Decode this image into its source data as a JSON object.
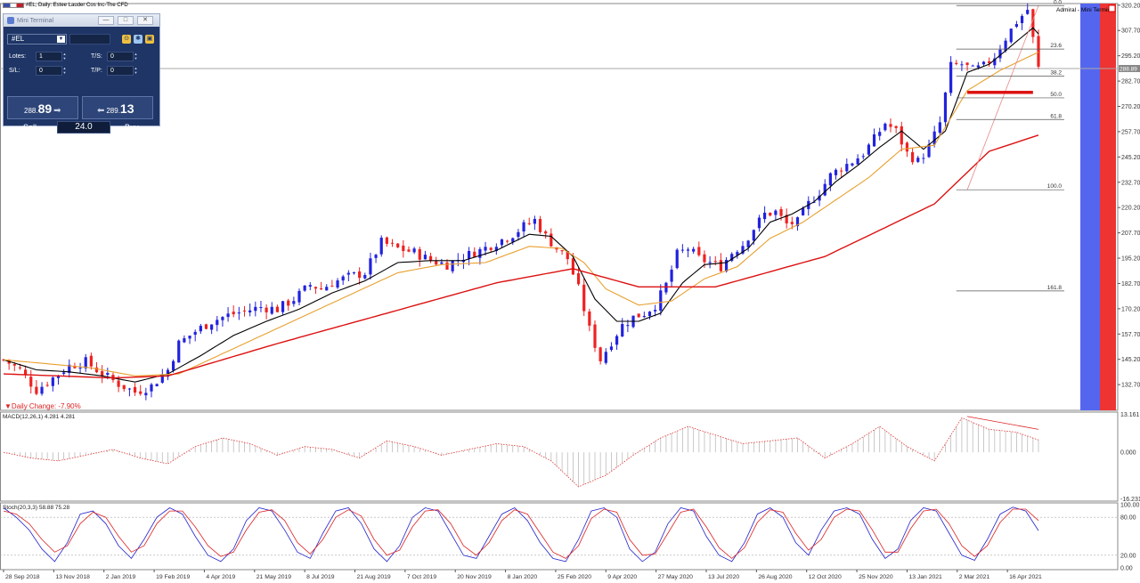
{
  "title": "#EL, Daily:  Estee Lauder Cos Inc-The CFD",
  "mini_terminal": {
    "title": "Mini Terminal",
    "symbol": "#EL",
    "lots_label": "Lotes:",
    "lots_value": "1",
    "sl_label": "S/L:",
    "sl_value": "0",
    "ts_label": "T/S:",
    "ts_value": "0",
    "tp_label": "T/P:",
    "tp_value": "0",
    "sell_price_small": "288.",
    "sell_price_big": "89",
    "buy_price_small": "289.",
    "buy_price_big": "13",
    "sell_label": "Sell",
    "buy_label": "Buy",
    "volume": "24.0"
  },
  "admiral_label": "Admiral - Mini Terminal",
  "daily_change": "▼Daily Change: -7.90%",
  "current_price": "288.89",
  "colors": {
    "bull": "#2222dd",
    "bear": "#ee2222",
    "sma_fast": "#000000",
    "sma_mid": "#e8a030",
    "sma_slow": "#dd1111",
    "panel_blue": "#5566ee",
    "panel_red": "#ee3333"
  },
  "chart_data": [
    {
      "type": "candlestick",
      "title": "#EL, Daily:  Estee Lauder Cos Inc-The CFD",
      "ylim": [
        120.0,
        321.0
      ],
      "y_ticks": [
        "320.20",
        "307.70",
        "295.20",
        "282.70",
        "270.20",
        "257.70",
        "245.20",
        "232.70",
        "220.20",
        "207.70",
        "195.20",
        "182.70",
        "170.20",
        "157.70",
        "145.20",
        "132.70"
      ],
      "x_ticks": [
        "28 Sep 2018",
        "13 Nov 2018",
        "2 Jan 2019",
        "19 Feb 2019",
        "4 Apr 2019",
        "21 May 2019",
        "8 Jul 2019",
        "21 Aug 2019",
        "7 Oct 2019",
        "20 Nov 2019",
        "8 Jan 2020",
        "25 Feb 2020",
        "9 Apr 2020",
        "27 May 2020",
        "13 Jul 2020",
        "26 Aug 2020",
        "12 Oct 2020",
        "25 Nov 2020",
        "13 Jan 2021",
        "2 Mar 2021",
        "16 Apr 2021"
      ],
      "price_path": [
        [
          0,
          145
        ],
        [
          3,
          140
        ],
        [
          6,
          130
        ],
        [
          9,
          136
        ],
        [
          12,
          142
        ],
        [
          15,
          144
        ],
        [
          18,
          138
        ],
        [
          21,
          133
        ],
        [
          24,
          129
        ],
        [
          27,
          132
        ],
        [
          30,
          140
        ],
        [
          32,
          153
        ],
        [
          35,
          159
        ],
        [
          38,
          164
        ],
        [
          41,
          167
        ],
        [
          44,
          169
        ],
        [
          47,
          171
        ],
        [
          50,
          170
        ],
        [
          53,
          175
        ],
        [
          56,
          182
        ],
        [
          58,
          180
        ],
        [
          60,
          183
        ],
        [
          63,
          186
        ],
        [
          66,
          188
        ],
        [
          69,
          203
        ],
        [
          72,
          200
        ],
        [
          75,
          198
        ],
        [
          78,
          194
        ],
        [
          81,
          192
        ],
        [
          84,
          196
        ],
        [
          87,
          199
        ],
        [
          90,
          203
        ],
        [
          93,
          207
        ],
        [
          95,
          211
        ],
        [
          97,
          214
        ],
        [
          99,
          206
        ],
        [
          101,
          200
        ],
        [
          103,
          195
        ],
        [
          105,
          180
        ],
        [
          107,
          160
        ],
        [
          109,
          145
        ],
        [
          111,
          154
        ],
        [
          113,
          162
        ],
        [
          115,
          166
        ],
        [
          117,
          168
        ],
        [
          119,
          172
        ],
        [
          121,
          182
        ],
        [
          123,
          197
        ],
        [
          125,
          200
        ],
        [
          127,
          195
        ],
        [
          129,
          193
        ],
        [
          131,
          191
        ],
        [
          133,
          198
        ],
        [
          135,
          202
        ],
        [
          137,
          210
        ],
        [
          139,
          217
        ],
        [
          141,
          218
        ],
        [
          143,
          212
        ],
        [
          145,
          213
        ],
        [
          147,
          222
        ],
        [
          149,
          228
        ],
        [
          151,
          236
        ],
        [
          153,
          240
        ],
        [
          155,
          243
        ],
        [
          157,
          247
        ],
        [
          159,
          254
        ],
        [
          161,
          262
        ],
        [
          163,
          258
        ],
        [
          165,
          247
        ],
        [
          167,
          243
        ],
        [
          169,
          250
        ],
        [
          171,
          262
        ],
        [
          173,
          290
        ],
        [
          175,
          291
        ],
        [
          177,
          288
        ],
        [
          179,
          290
        ],
        [
          181,
          295
        ],
        [
          183,
          304
        ],
        [
          185,
          312
        ],
        [
          187,
          318
        ],
        [
          189,
          288.9
        ]
      ],
      "series": [
        {
          "name": "",
          "values": [
            [
              0,
              145
            ],
            [
              6,
              140
            ],
            [
              12,
              139
            ],
            [
              18,
              137
            ],
            [
              24,
              134
            ],
            [
              30,
              138
            ],
            [
              36,
              147
            ],
            [
              42,
              157
            ],
            [
              48,
              164
            ],
            [
              54,
              170
            ],
            [
              60,
              178
            ],
            [
              66,
              184
            ],
            [
              72,
              193
            ],
            [
              78,
              194
            ],
            [
              84,
              194
            ],
            [
              90,
              199
            ],
            [
              96,
              207
            ],
            [
              100,
              206
            ],
            [
              104,
              196
            ],
            [
              108,
              175
            ],
            [
              112,
              164
            ],
            [
              116,
              164
            ],
            [
              120,
              168
            ],
            [
              124,
              183
            ],
            [
              128,
              192
            ],
            [
              132,
              193
            ],
            [
              136,
              200
            ],
            [
              140,
              213
            ],
            [
              144,
              217
            ],
            [
              148,
              223
            ],
            [
              152,
              233
            ],
            [
              156,
              241
            ],
            [
              160,
              250
            ],
            [
              164,
              258
            ],
            [
              168,
              249
            ],
            [
              172,
              258
            ],
            [
              176,
              287
            ],
            [
              180,
              291
            ],
            [
              184,
              300
            ],
            [
              188,
              309
            ],
            [
              189,
              306
            ]
          ]
        },
        {
          "name": "",
          "values": [
            [
              0,
              145
            ],
            [
              8,
              143
            ],
            [
              16,
              141
            ],
            [
              24,
              137
            ],
            [
              32,
              138
            ],
            [
              40,
              148
            ],
            [
              48,
              158
            ],
            [
              56,
              168
            ],
            [
              64,
              178
            ],
            [
              72,
              188
            ],
            [
              80,
              192
            ],
            [
              88,
              193
            ],
            [
              96,
              201
            ],
            [
              102,
              200
            ],
            [
              106,
              193
            ],
            [
              110,
              180
            ],
            [
              116,
              172
            ],
            [
              122,
              174
            ],
            [
              128,
              185
            ],
            [
              134,
              191
            ],
            [
              140,
              205
            ],
            [
              146,
              213
            ],
            [
              152,
              224
            ],
            [
              158,
              235
            ],
            [
              164,
              249
            ],
            [
              170,
              251
            ],
            [
              176,
              278
            ],
            [
              182,
              288
            ],
            [
              189,
              297
            ]
          ]
        },
        {
          "name": "",
          "values": [
            [
              0,
              138
            ],
            [
              20,
              136
            ],
            [
              30,
              137
            ],
            [
              50,
              153
            ],
            [
              70,
              168
            ],
            [
              90,
              183
            ],
            [
              104,
              190
            ],
            [
              116,
              181
            ],
            [
              130,
              181
            ],
            [
              150,
              196
            ],
            [
              170,
              222
            ],
            [
              180,
              248
            ],
            [
              189,
              256
            ]
          ]
        }
      ],
      "fibonacci": {
        "levels": [
          {
            "label": "0.0",
            "value": 320.0
          },
          {
            "label": "23.6",
            "value": 298.5
          },
          {
            "label": "38.2",
            "value": 285.2
          },
          {
            "label": "50.0",
            "value": 274.4
          },
          {
            "label": "61.8",
            "value": 263.7
          },
          {
            "label": "100.0",
            "value": 229.0
          },
          {
            "label": "161.8",
            "value": 179.0
          }
        ]
      },
      "support_level": 277.0
    },
    {
      "type": "bar",
      "title": "MACD(12,26,1) 4.281 4.281",
      "ylim": [
        -17,
        14
      ],
      "y_ticks": [
        "13.161",
        "0.000",
        "-16.231"
      ],
      "values": [
        [
          0,
          0
        ],
        [
          5,
          -2
        ],
        [
          10,
          -3
        ],
        [
          15,
          -1
        ],
        [
          20,
          1
        ],
        [
          25,
          -2
        ],
        [
          30,
          -4
        ],
        [
          35,
          2
        ],
        [
          40,
          5
        ],
        [
          45,
          3
        ],
        [
          50,
          -1
        ],
        [
          55,
          2
        ],
        [
          60,
          1
        ],
        [
          65,
          -2
        ],
        [
          70,
          4
        ],
        [
          75,
          2
        ],
        [
          80,
          -1
        ],
        [
          85,
          1
        ],
        [
          90,
          3
        ],
        [
          95,
          2
        ],
        [
          100,
          -3
        ],
        [
          105,
          -12
        ],
        [
          110,
          -8
        ],
        [
          115,
          -1
        ],
        [
          120,
          5
        ],
        [
          125,
          9
        ],
        [
          130,
          6
        ],
        [
          135,
          3
        ],
        [
          140,
          4
        ],
        [
          145,
          5
        ],
        [
          150,
          -2
        ],
        [
          155,
          3
        ],
        [
          160,
          9
        ],
        [
          165,
          2
        ],
        [
          170,
          -3
        ],
        [
          175,
          12
        ],
        [
          180,
          8
        ],
        [
          185,
          7
        ],
        [
          189,
          4.3
        ]
      ]
    },
    {
      "type": "line",
      "title": "Stoch(20,3,3) 58.88 75.28",
      "ylim": [
        0,
        100
      ],
      "y_ticks": [
        "100.00",
        "80.00",
        "20.00",
        "0.00"
      ],
      "series": [
        {
          "name": "",
          "values": [
            95,
            80,
            60,
            30,
            10,
            40,
            85,
            90,
            70,
            35,
            15,
            45,
            80,
            95,
            85,
            50,
            20,
            10,
            30,
            75,
            95,
            90,
            60,
            25,
            15,
            55,
            90,
            95,
            70,
            30,
            10,
            35,
            80,
            95,
            90,
            55,
            20,
            15,
            50,
            85,
            95,
            75,
            40,
            15,
            10,
            45,
            90,
            95,
            80,
            30,
            10,
            25,
            70,
            95,
            90,
            50,
            20,
            10,
            40,
            85,
            95,
            80,
            40,
            20,
            60,
            90,
            95,
            85,
            45,
            15,
            30,
            75,
            95,
            90,
            55,
            20,
            12,
            45,
            85,
            96,
            90,
            59
          ]
        },
        {
          "name": "",
          "values": [
            90,
            85,
            70,
            45,
            25,
            35,
            70,
            88,
            80,
            50,
            25,
            35,
            70,
            90,
            90,
            65,
            35,
            18,
            25,
            60,
            88,
            92,
            75,
            40,
            22,
            45,
            80,
            92,
            82,
            45,
            20,
            28,
            65,
            90,
            92,
            70,
            35,
            20,
            40,
            75,
            92,
            85,
            55,
            25,
            15,
            35,
            78,
            93,
            88,
            45,
            20,
            22,
            55,
            88,
            93,
            65,
            32,
            15,
            32,
            72,
            92,
            88,
            55,
            28,
            45,
            80,
            93,
            90,
            60,
            25,
            25,
            62,
            90,
            93,
            70,
            35,
            18,
            35,
            72,
            93,
            93,
            75
          ]
        }
      ]
    }
  ]
}
